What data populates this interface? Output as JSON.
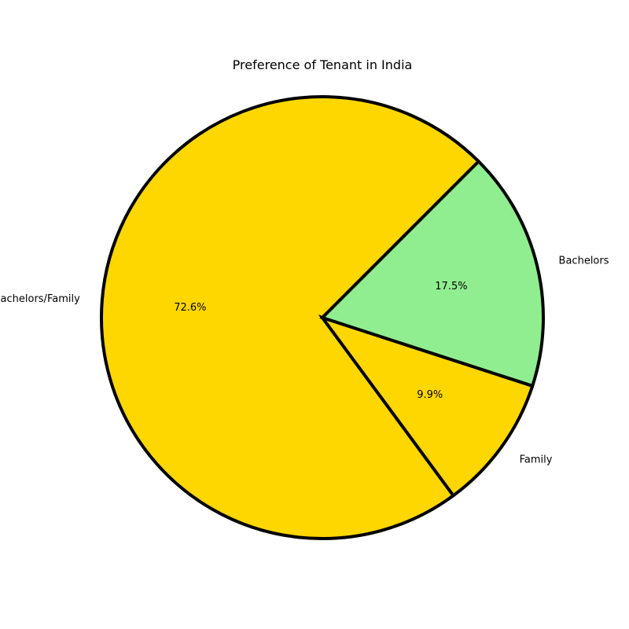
{
  "chart_data": {
    "type": "pie",
    "title": "Preference of Tenant in India",
    "categories": [
      "Bachelors/Family",
      "Family",
      "Bachelors"
    ],
    "values": [
      72.6,
      9.9,
      17.5
    ],
    "value_labels": [
      "72.6%",
      "9.9%",
      "17.5%"
    ],
    "colors": [
      "#FFD700",
      "#FFD700",
      "#90EE90"
    ],
    "edge_color": "#000000",
    "start_angle_deg": 45,
    "direction": "counterclockwise",
    "legend": "none"
  }
}
